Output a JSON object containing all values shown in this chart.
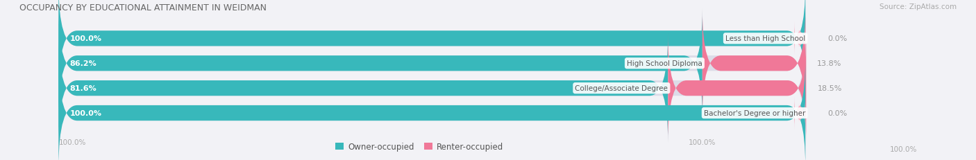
{
  "title": "OCCUPANCY BY EDUCATIONAL ATTAINMENT IN WEIDMAN",
  "source": "Source: ZipAtlas.com",
  "categories": [
    "Less than High School",
    "High School Diploma",
    "College/Associate Degree",
    "Bachelor's Degree or higher"
  ],
  "owner_values": [
    100.0,
    86.2,
    81.6,
    100.0
  ],
  "renter_values": [
    0.0,
    13.8,
    18.5,
    0.0
  ],
  "owner_color": "#38b8bb",
  "renter_color": "#f07898",
  "renter_color_light": "#f5adc0",
  "bar_bg_color": "#dcdce8",
  "title_color": "#666666",
  "figure_bg": "#f2f2f6",
  "bar_height": 0.62,
  "legend_owner": "Owner-occupied",
  "legend_renter": "Renter-occupied",
  "bar_total_pct": 100.0,
  "owner_label_color": "#ffffff",
  "renter_label_color": "#888888",
  "cat_label_color": "#555555"
}
